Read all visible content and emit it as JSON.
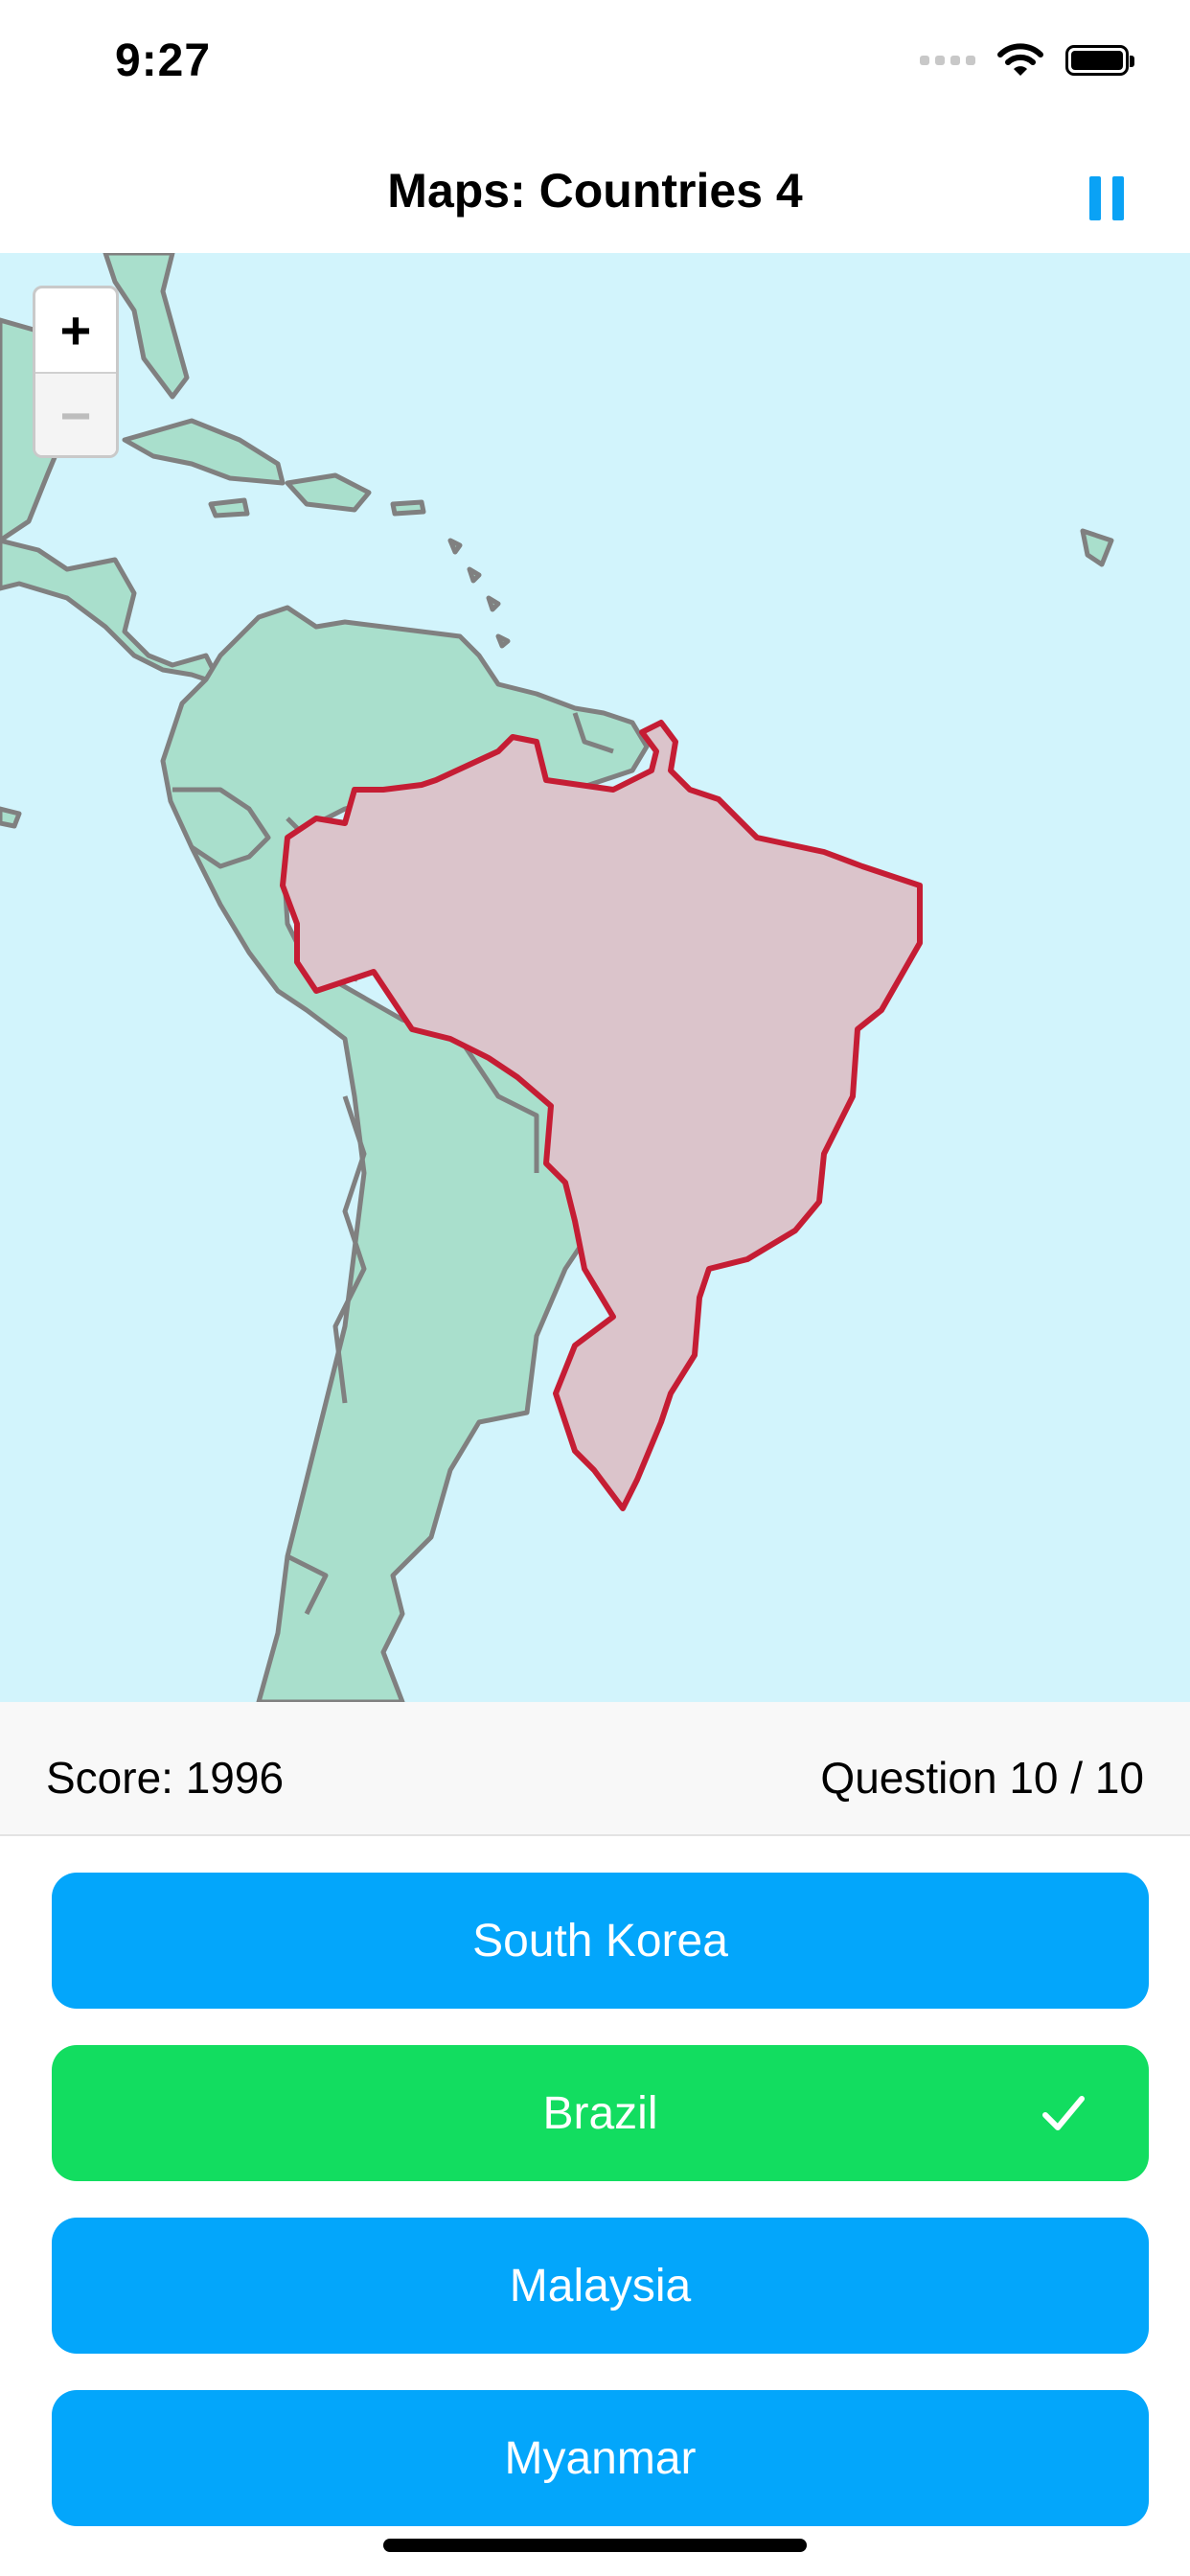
{
  "status_bar": {
    "time": "9:27"
  },
  "header": {
    "title": "Maps: Countries 4"
  },
  "map": {
    "zoom_in_label": "+",
    "zoom_out_label": "−",
    "colors": {
      "water": "#d2f4fc",
      "land": "#a9dfcc",
      "border": "#808080",
      "highlight_fill": "#dbc4cb",
      "highlight_border": "#c51d34"
    }
  },
  "score_bar": {
    "score": "Score: 1996",
    "question": "Question 10 / 10"
  },
  "answers": [
    {
      "label": "South Korea",
      "state": "default"
    },
    {
      "label": "Brazil",
      "state": "correct"
    },
    {
      "label": "Malaysia",
      "state": "default"
    },
    {
      "label": "Myanmar",
      "state": "default"
    }
  ],
  "colors": {
    "accent": "#0aa2f5",
    "answer_default": "#03a6fb",
    "answer_correct": "#12dd60"
  }
}
